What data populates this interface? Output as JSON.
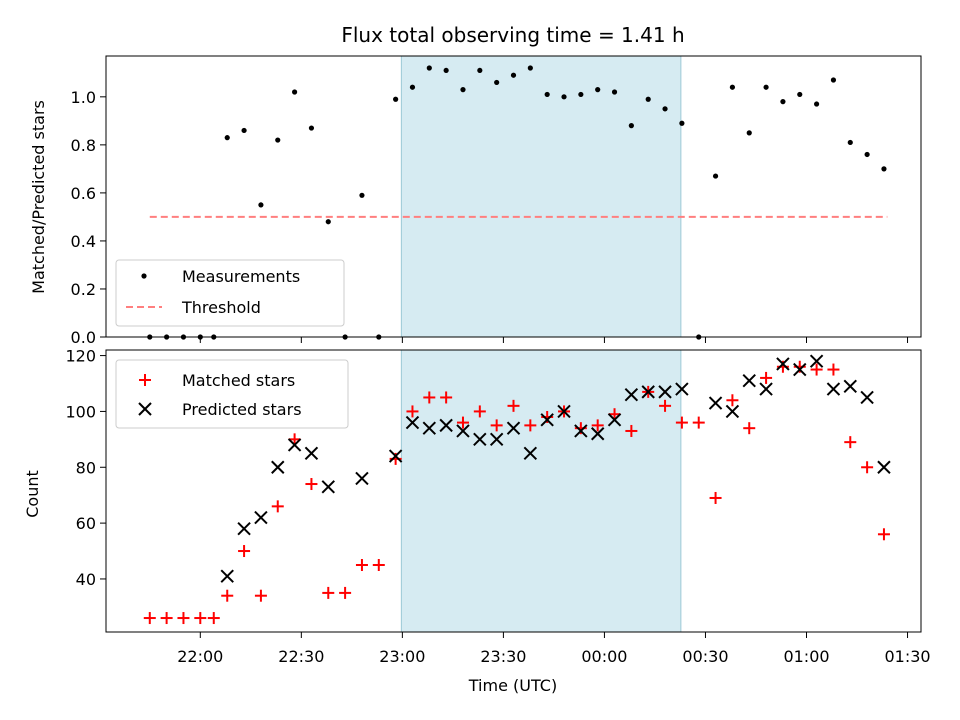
{
  "chart_data": [
    {
      "type": "scatter",
      "title": "Flux total observing time = 1.41 h",
      "ylabel": "Matched/Predicted stars",
      "ylim": [
        0,
        1.17
      ],
      "yticks": [
        "0.0",
        "0.2",
        "0.4",
        "0.6",
        "0.8",
        "1.0"
      ],
      "shaded_interval_min": [
        -60.3,
        22.7
      ],
      "threshold": {
        "value": 0.5,
        "x_range_min": [
          -135,
          84
        ],
        "color": "#ff7f7f"
      },
      "legend": {
        "placement": "lower-left",
        "entries": [
          "Measurements",
          "Threshold"
        ]
      },
      "series": [
        {
          "name": "Measurements",
          "marker": "dot",
          "color": "#000000",
          "x_min": [
            -135,
            -130,
            -125,
            -120,
            -116,
            -112,
            -107,
            -102,
            -97,
            -92,
            -87,
            -82,
            -77,
            -72,
            -67,
            -62,
            -57,
            -52,
            -47,
            -42,
            -37,
            -32,
            -27,
            -22,
            -17,
            -12,
            -7,
            -2,
            3,
            8,
            13,
            18,
            23,
            28,
            33,
            38,
            43,
            48,
            53,
            58,
            63,
            68,
            73,
            78,
            83
          ],
          "values": [
            0,
            0,
            0,
            0,
            0,
            0.83,
            0.86,
            0.55,
            0.82,
            1.02,
            0.87,
            0.48,
            0,
            0.59,
            0,
            0.99,
            1.04,
            1.12,
            1.11,
            1.03,
            1.11,
            1.06,
            1.09,
            1.12,
            1.01,
            1.0,
            1.01,
            1.03,
            1.02,
            0.88,
            0.99,
            0.95,
            0.89,
            0,
            0.67,
            1.04,
            0.85,
            1.04,
            0.98,
            1.01,
            0.97,
            1.07,
            0.81,
            0.76,
            0.7
          ]
        }
      ]
    },
    {
      "type": "scatter",
      "xlabel": "Time (UTC)",
      "ylabel": "Count",
      "ylim": [
        21,
        122
      ],
      "yticks": [
        "40",
        "60",
        "80",
        "100",
        "120"
      ],
      "xticks": [
        "22:00",
        "22:30",
        "23:00",
        "23:30",
        "00:00",
        "00:30",
        "01:00",
        "01:30"
      ],
      "xtick_min": [
        -120,
        -90,
        -60,
        -30,
        0,
        30,
        60,
        90
      ],
      "xlim_min": [
        -148,
        94
      ],
      "shaded_interval_min": [
        -60.3,
        22.7
      ],
      "legend": {
        "placement": "upper-left",
        "entries": [
          "Matched stars",
          "Predicted stars"
        ]
      },
      "series": [
        {
          "name": "Matched stars",
          "marker": "plus",
          "color": "#ff0000",
          "x_min": [
            -135,
            -130,
            -125,
            -120,
            -116,
            -112,
            -107,
            -102,
            -97,
            -92,
            -87,
            -82,
            -77,
            -72,
            -67,
            -62,
            -57,
            -52,
            -47,
            -42,
            -37,
            -32,
            -27,
            -22,
            -17,
            -12,
            -7,
            -2,
            3,
            8,
            13,
            18,
            23,
            28,
            33,
            38,
            43,
            48,
            53,
            58,
            63,
            68,
            73,
            78,
            83
          ],
          "values": [
            26,
            26,
            26,
            26,
            26,
            34,
            50,
            34,
            66,
            90,
            74,
            35,
            35,
            45,
            45,
            83,
            100,
            105,
            105,
            96,
            100,
            95,
            102,
            95,
            98,
            100,
            94,
            95,
            99,
            93,
            107,
            102,
            96,
            96,
            69,
            104,
            94,
            112,
            116,
            116,
            115,
            115,
            89,
            80,
            56
          ]
        },
        {
          "name": "Predicted stars",
          "marker": "x",
          "color": "#000000",
          "x_min": [
            -112,
            -107,
            -102,
            -97,
            -92,
            -87,
            -82,
            -72,
            -62,
            -57,
            -52,
            -47,
            -42,
            -37,
            -32,
            -27,
            -22,
            -17,
            -12,
            -7,
            -2,
            3,
            8,
            13,
            18,
            23,
            33,
            38,
            43,
            48,
            53,
            58,
            63,
            68,
            73,
            78,
            83
          ],
          "values": [
            41,
            58,
            62,
            80,
            88,
            85,
            73,
            76,
            84,
            96,
            94,
            95,
            93,
            90,
            90,
            94,
            85,
            97,
            100,
            93,
            92,
            97,
            106,
            107,
            107,
            108,
            103,
            100,
            111,
            108,
            117,
            115,
            118,
            108,
            109,
            105,
            80
          ]
        }
      ]
    }
  ]
}
